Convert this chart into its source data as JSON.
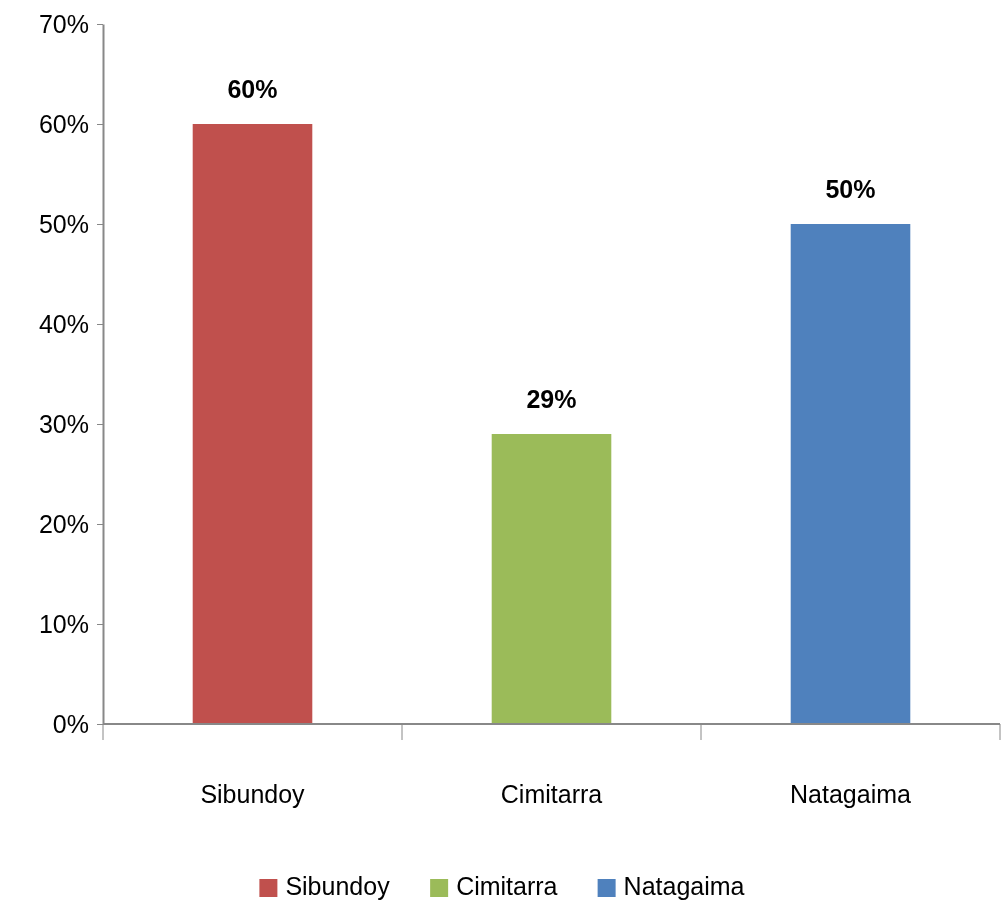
{
  "chart_data": {
    "type": "bar",
    "categories": [
      "Sibundoy",
      "Cimitarra",
      "Natagaima"
    ],
    "series": [
      {
        "name": "Sibundoy",
        "color": "#c0504d",
        "values": [
          60,
          null,
          null
        ],
        "value_labels": [
          "60%",
          null,
          null
        ]
      },
      {
        "name": "Cimitarra",
        "color": "#9bbb59",
        "values": [
          null,
          29,
          null
        ],
        "value_labels": [
          null,
          "29%",
          null
        ]
      },
      {
        "name": "Natagaima",
        "color": "#4f81bd",
        "values": [
          null,
          null,
          50
        ],
        "value_labels": [
          null,
          null,
          "50%"
        ]
      }
    ],
    "ylim": [
      0,
      70
    ],
    "yticks": [
      {
        "value": 0,
        "label": "0%"
      },
      {
        "value": 10,
        "label": "10%"
      },
      {
        "value": 20,
        "label": "20%"
      },
      {
        "value": 30,
        "label": "30%"
      },
      {
        "value": 40,
        "label": "40%"
      },
      {
        "value": 50,
        "label": "50%"
      },
      {
        "value": 60,
        "label": "60%"
      },
      {
        "value": 70,
        "label": "70%"
      }
    ],
    "legend": "bottom"
  }
}
